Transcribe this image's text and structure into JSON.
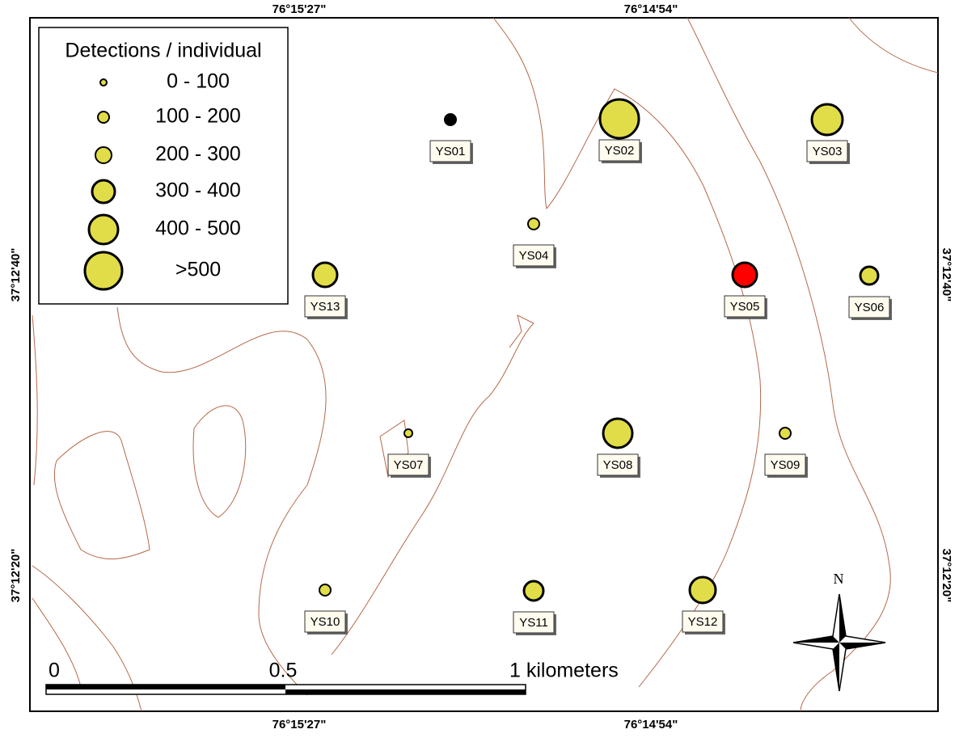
{
  "frame": {
    "top_labels": [
      "76°15'27\"",
      "76°14'54\""
    ],
    "bottom_labels": [
      "76°15'27\"",
      "76°14'54\""
    ],
    "left_labels": [
      "37°12'40\"",
      "37°12'20\""
    ],
    "right_labels": [
      "37°12'40\"",
      "37°12'20\""
    ]
  },
  "legend": {
    "title": "Detections / individual",
    "items": [
      "0 - 100",
      "100 - 200",
      "200 - 300",
      "300 - 400",
      "400 - 500",
      ">500"
    ]
  },
  "stations": [
    "YS01",
    "YS02",
    "YS03",
    "YS04",
    "YS05",
    "YS06",
    "YS07",
    "YS08",
    "YS09",
    "YS10",
    "YS11",
    "YS12",
    "YS13"
  ],
  "scale_bar": {
    "labels": [
      "0",
      "0.5",
      "1 kilometers"
    ]
  },
  "north_arrow": {
    "label": "N"
  }
}
